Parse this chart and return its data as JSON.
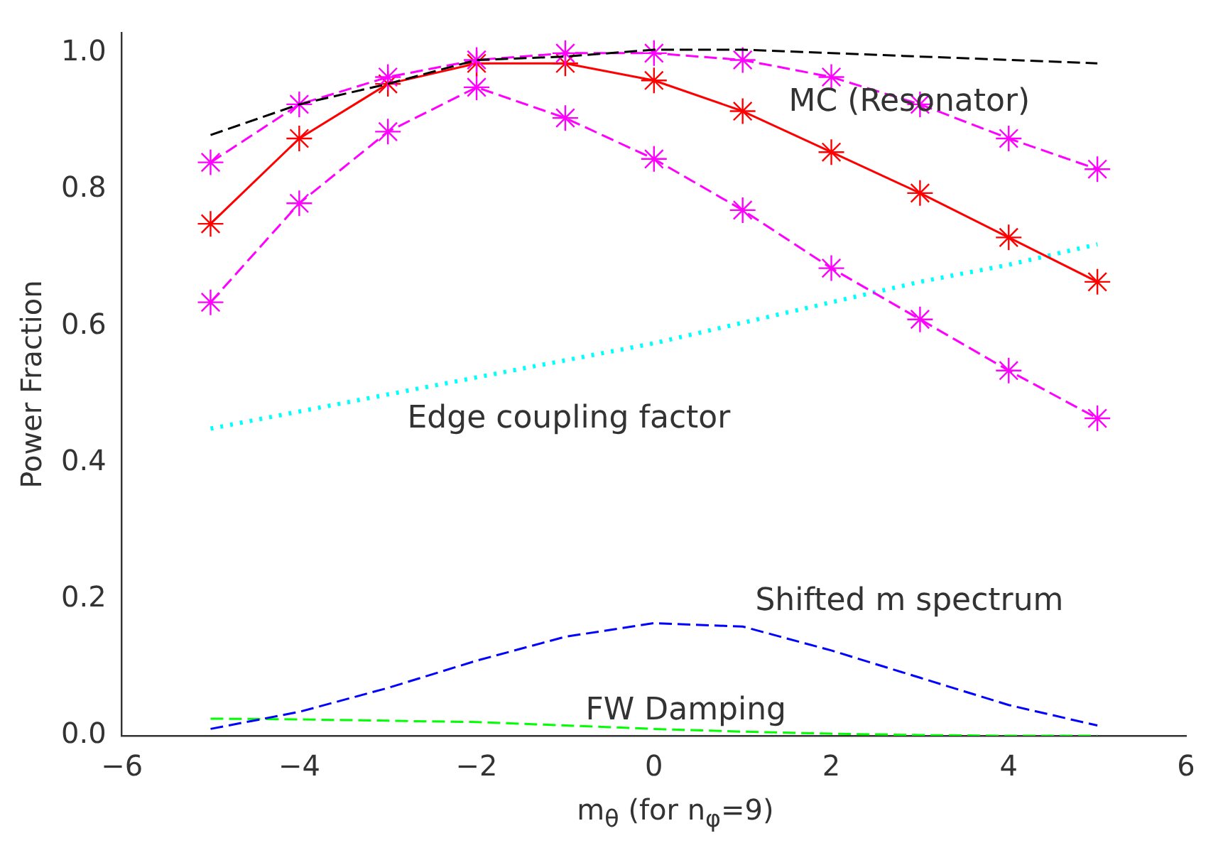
{
  "chart_data": {
    "type": "line",
    "xlabel": "m$_{θ}$ (for n$_{φ}$=9)",
    "ylabel": "Power Fraction",
    "x": [
      -5,
      -4,
      -3,
      -2,
      -1,
      0,
      1,
      2,
      3,
      4,
      5
    ],
    "xlim": [
      -6,
      6
    ],
    "xticks": [
      -6,
      -4,
      -2,
      0,
      2,
      4,
      6
    ],
    "ylim": [
      0,
      1.03
    ],
    "yticks": [
      {
        "value": 0,
        "label": "0.0"
      },
      {
        "value": 0.2,
        "label": "0.2"
      },
      {
        "value": 0.4,
        "label": "0.4"
      },
      {
        "value": 0.6,
        "label": "0.6"
      },
      {
        "value": 0.8,
        "label": "0.8"
      },
      {
        "value": 1,
        "label": "1.0"
      }
    ],
    "grid": false,
    "legend": false,
    "series": [
      {
        "color": "#000000",
        "line_style": "dashed",
        "marker": "none",
        "values": [
          0.88,
          0.925,
          0.955,
          0.99,
          0.995,
          1.005,
          1.005,
          1.0,
          0.995,
          0.99,
          0.985
        ]
      },
      {
        "color": "#ff00ff",
        "line_style": "dashed",
        "marker": "cross",
        "values": [
          0.84,
          0.925,
          0.965,
          0.99,
          1.0,
          1.0,
          0.99,
          0.965,
          0.925,
          0.875,
          0.83
        ]
      },
      {
        "color": "#ff0000",
        "line_style": "solid",
        "marker": "cross",
        "values": [
          0.75,
          0.875,
          0.955,
          0.985,
          0.985,
          0.96,
          0.915,
          0.855,
          0.795,
          0.73,
          0.665
        ]
      },
      {
        "color": "#ff00ff",
        "line_style": "dashed",
        "marker": "cross",
        "values": [
          0.635,
          0.78,
          0.885,
          0.95,
          0.905,
          0.845,
          0.77,
          0.685,
          0.61,
          0.535,
          0.465
        ]
      },
      {
        "color": "#00ffff",
        "line_style": "dotted",
        "marker": "none",
        "values": [
          0.45,
          0.475,
          0.5,
          0.525,
          0.55,
          0.575,
          0.605,
          0.635,
          0.665,
          0.69,
          0.72
        ]
      },
      {
        "color": "#0000ff",
        "line_style": "dashed",
        "marker": "none",
        "values": [
          0.01,
          0.035,
          0.07,
          0.11,
          0.145,
          0.165,
          0.16,
          0.125,
          0.085,
          0.045,
          0.015
        ]
      },
      {
        "color": "#00ff00",
        "line_style": "dashed",
        "marker": "none",
        "values": [
          0.025,
          0.024,
          0.022,
          0.02,
          0.015,
          0.01,
          0.006,
          0.003,
          0.001,
          0,
          0
        ]
      }
    ],
    "annotations": [
      "MC (Resonator)",
      "Edge coupling factor",
      "Shifted m spectrum",
      "FW Damping"
    ]
  }
}
